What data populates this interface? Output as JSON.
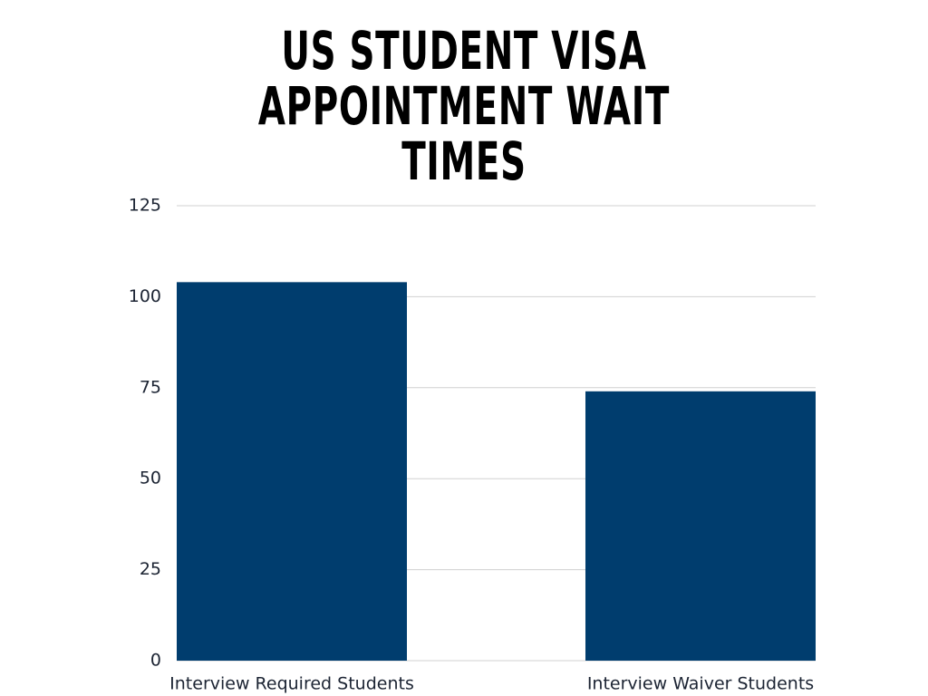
{
  "chart_data": {
    "type": "bar",
    "title": "US STUDENT VISA APPOINTMENT WAIT TIMES",
    "categories": [
      "Interview Required Students",
      "Interview Waiver Students"
    ],
    "values": [
      104,
      74
    ],
    "color": "#003d6e",
    "ylim": [
      0,
      125
    ],
    "yticks": [
      0,
      25,
      50,
      75,
      100,
      125
    ],
    "grid": true
  }
}
